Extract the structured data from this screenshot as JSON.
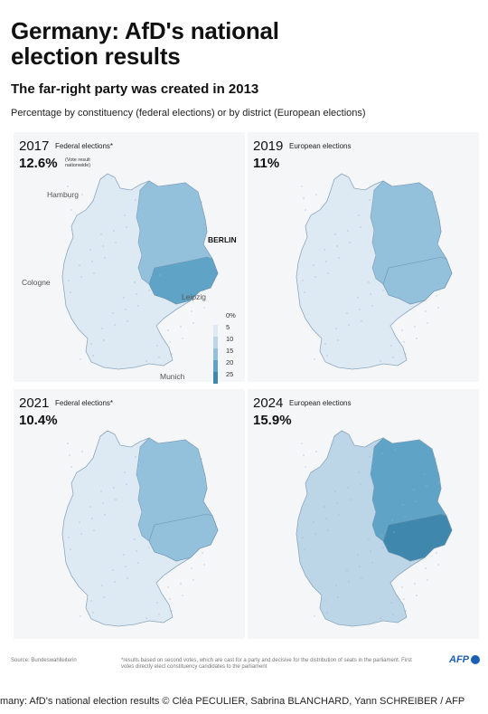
{
  "header": {
    "title": "Germany: AfD's national election results",
    "subtitle": "The far-right party was created in 2013",
    "description": "Percentage by constituency (federal elections) or by district (European elections)"
  },
  "panels": [
    {
      "year": "2017",
      "type": "Federal elections*",
      "percent": "12.6%",
      "note": "(Vote result nationwide)",
      "east_level": 0.78,
      "west_level": 0.22
    },
    {
      "year": "2019",
      "type": "European elections",
      "percent": "11%",
      "east_level": 0.62,
      "west_level": 0.18
    },
    {
      "year": "2021",
      "type": "Federal elections*",
      "percent": "10.4%",
      "east_level": 0.6,
      "west_level": 0.16
    },
    {
      "year": "2024",
      "type": "European elections",
      "percent": "15.9%",
      "east_level": 0.9,
      "west_level": 0.38
    }
  ],
  "cities": {
    "hamburg": "Hamburg",
    "berlin": "BERLIN",
    "cologne": "Cologne",
    "leipzig": "Leipzig",
    "munich": "Munich"
  },
  "legend": {
    "labels": [
      "0%",
      "5",
      "10",
      "15",
      "20",
      "25"
    ],
    "colors": [
      "#f3f7fb",
      "#dde9f3",
      "#bcd6e8",
      "#93c1dc",
      "#5fa4c6",
      "#3f87ad"
    ]
  },
  "footer": {
    "source": "Source: Bundeswahlleiterin",
    "note": "*results based on second votes, which are cast for a party and decisive for the distribution of seats in the parliament. First votes directly elect constituency candidates to the parliament",
    "logo": "AFP"
  },
  "caption": "many: AfD's national election results © Cléa PECULIER, Sabrina BLANCHARD, Yann SCHREIBER / AFP"
}
